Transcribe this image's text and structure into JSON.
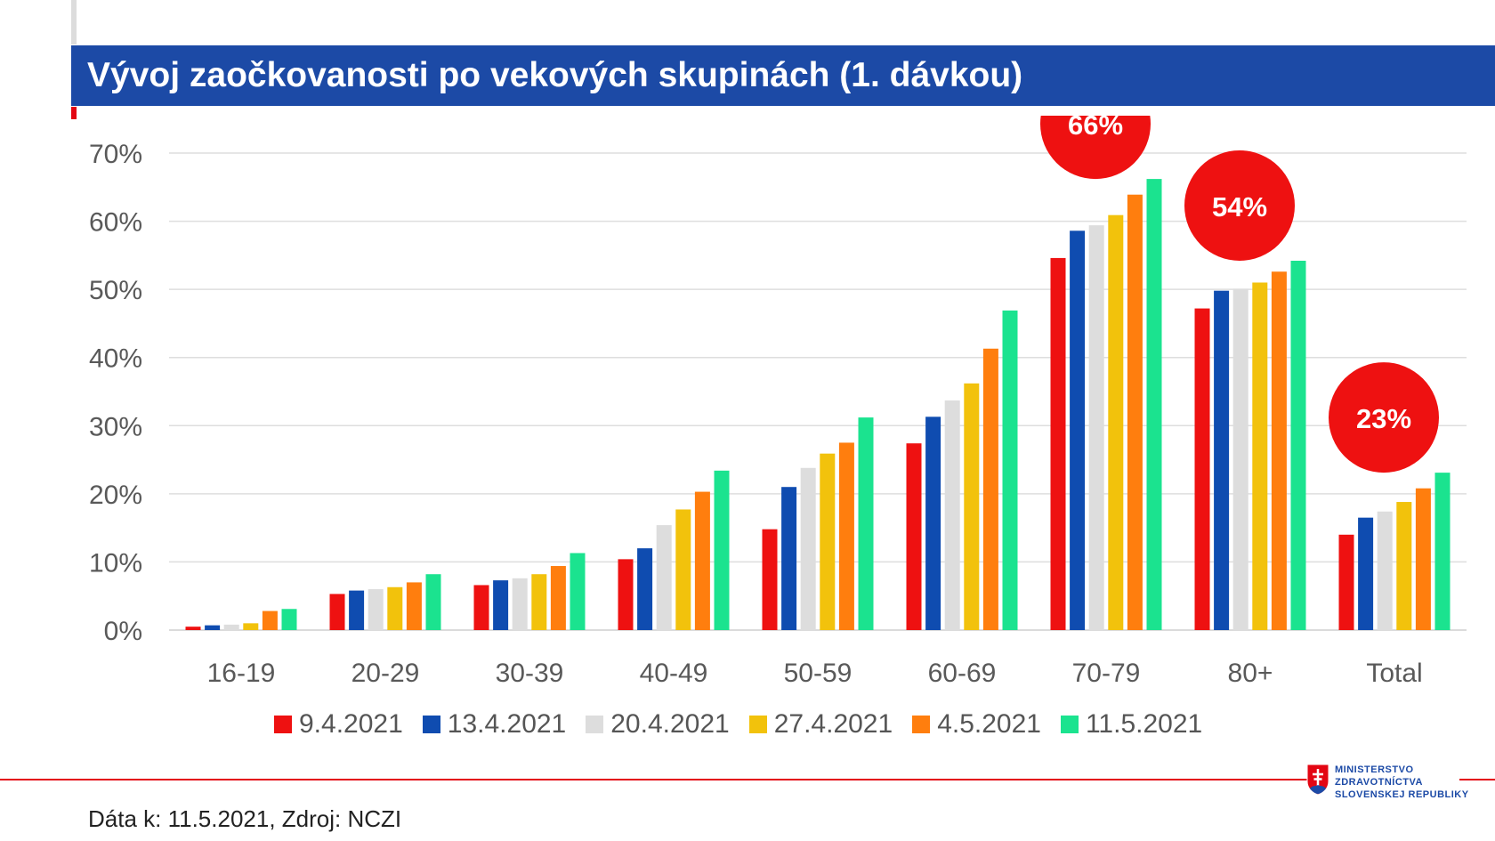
{
  "header": {
    "title": "Vývoj zaočkovanosti po vekových skupinách (1. dávkou)"
  },
  "footer": {
    "source": "Dáta k: 11.5.2021, Zdroj: NCZI",
    "logo_lines": [
      "MINISTERSTVO",
      "ZDRAVOTNÍCTVA",
      "SLOVENSKEJ REPUBLIKY"
    ]
  },
  "chart_data": {
    "type": "bar",
    "title": "Vývoj zaočkovanosti po vekových skupinách (1. dávkou)",
    "xlabel": "",
    "ylabel": "",
    "ylim": [
      0,
      70
    ],
    "yticks": [
      "0%",
      "10%",
      "20%",
      "30%",
      "40%",
      "50%",
      "60%",
      "70%"
    ],
    "grid": true,
    "legend_position": "bottom",
    "categories": [
      "16-19",
      "20-29",
      "30-39",
      "40-49",
      "50-59",
      "60-69",
      "70-79",
      "80+",
      "Total"
    ],
    "series": [
      {
        "name": "9.4.2021",
        "color": "#ee1111",
        "values": [
          0.5,
          5.3,
          6.6,
          10.4,
          14.8,
          27.4,
          54.6,
          47.2,
          14.0
        ]
      },
      {
        "name": "13.4.2021",
        "color": "#0f4cb0",
        "values": [
          0.7,
          5.8,
          7.3,
          12.0,
          21.0,
          31.3,
          58.6,
          49.8,
          16.5
        ]
      },
      {
        "name": "20.4.2021",
        "color": "#dddddd",
        "values": [
          0.8,
          6.0,
          7.6,
          15.4,
          23.8,
          33.7,
          59.4,
          50.1,
          17.4
        ]
      },
      {
        "name": "27.4.2021",
        "color": "#f2c20c",
        "values": [
          1.0,
          6.3,
          8.2,
          17.7,
          25.9,
          36.2,
          60.9,
          51.0,
          18.8
        ]
      },
      {
        "name": "4.5.2021",
        "color": "#ff7e0e",
        "values": [
          2.8,
          7.0,
          9.4,
          20.3,
          27.5,
          41.3,
          63.9,
          52.6,
          20.8
        ]
      },
      {
        "name": "11.5.2021",
        "color": "#1be38f",
        "values": [
          3.1,
          8.2,
          11.3,
          23.4,
          31.2,
          46.9,
          66.2,
          54.2,
          23.1
        ]
      }
    ],
    "callouts": [
      {
        "category": "70-79",
        "label": "66%",
        "color": "#ee1111"
      },
      {
        "category": "80+",
        "label": "54%",
        "color": "#ee1111"
      },
      {
        "category": "Total",
        "label": "23%",
        "color": "#ee1111"
      }
    ]
  }
}
